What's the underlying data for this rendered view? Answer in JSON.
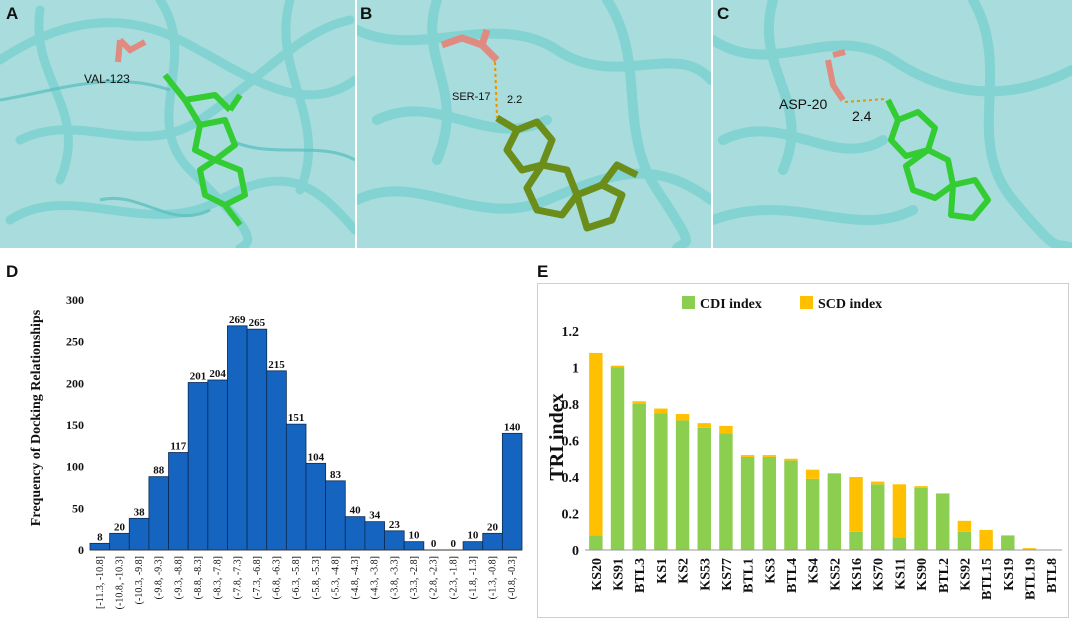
{
  "panels": {
    "A": {
      "letter": "A",
      "residue_label": "VAL-123"
    },
    "B": {
      "letter": "B",
      "residue_label": "SER-17",
      "distance_label": "2.2"
    },
    "C": {
      "letter": "C",
      "residue_label": "ASP-20",
      "distance_label": "2.4"
    },
    "D": {
      "letter": "D"
    },
    "E": {
      "letter": "E"
    }
  },
  "colors": {
    "protein": "#7fd3d3",
    "protein_bg": "#a9dcdc",
    "ligand_bright": "#33cc33",
    "ligand_olive": "#6b8e1a",
    "residue": "#e08a80",
    "bar_blue": "#1565c0",
    "cdi_green": "#8ccf50",
    "scd_orange": "#ffc000"
  },
  "chart_data": [
    {
      "type": "bar",
      "title": "",
      "xlabel": "",
      "ylabel": "Frequency of Docking Relationships",
      "ylim": [
        0,
        300
      ],
      "yticks": [
        "0",
        "50",
        "100",
        "150",
        "200",
        "250",
        "300"
      ],
      "categories": [
        "[-11.3, -10.8]",
        "(-10.8, -10.3]",
        "(-10.3, -9.8]",
        "(-9.8, -9.3]",
        "(-9.3, -8.8]",
        "(-8.8, -8.3]",
        "(-8.3, -7.8]",
        "(-7.8, -7.3]",
        "(-7.3, -6.8]",
        "(-6.8, -6.3]",
        "(-6.3, -5.8]",
        "(-5.8, -5.3]",
        "(-5.3, -4.8]",
        "(-4.8, -4.3]",
        "(-4.3, -3.8]",
        "(-3.8, -3.3]",
        "(-3.3, -2.8]",
        "(-2.8, -2.3]",
        "(-2.3, -1.8]",
        "(-1.8, -1.3]",
        "(-1.3, -0.8]",
        "(-0.8, -0.3]"
      ],
      "values": [
        8,
        20,
        38,
        88,
        117,
        201,
        204,
        269,
        265,
        215,
        151,
        104,
        83,
        40,
        34,
        23,
        10,
        0,
        0,
        10,
        20,
        140
      ],
      "value_labels": [
        "8",
        "20",
        "38",
        "88",
        "117",
        "201",
        "204",
        "269",
        "265",
        "215",
        "151",
        "104",
        "83",
        "40",
        "34",
        "23",
        "10",
        "0",
        "0",
        "10",
        "20",
        "140"
      ]
    },
    {
      "type": "bar",
      "stacked": true,
      "title": "",
      "xlabel": "",
      "ylabel": "TRI index",
      "ylim": [
        0,
        1.2
      ],
      "yticks": [
        "0",
        "0.2",
        "0.4",
        "0.6",
        "0.8",
        "1",
        "1.2"
      ],
      "legend_position": "top",
      "categories": [
        "KS20",
        "KS91",
        "BTL3",
        "KS1",
        "KS2",
        "KS53",
        "KS77",
        "BTL1",
        "KS3",
        "BTL4",
        "KS4",
        "KS52",
        "KS16",
        "KS70",
        "KS11",
        "KS90",
        "BTL2",
        "KS92",
        "BTL15",
        "KS19",
        "BTL19",
        "BTL8"
      ],
      "series": [
        {
          "name": "CDI index",
          "values": [
            0.08,
            1.0,
            0.8,
            0.75,
            0.71,
            0.67,
            0.64,
            0.51,
            0.51,
            0.49,
            0.39,
            0.42,
            0.1,
            0.36,
            0.07,
            0.34,
            0.31,
            0.1,
            0.0,
            0.08,
            0.0,
            0.0
          ]
        },
        {
          "name": "SCD index",
          "values": [
            1.0,
            0.01,
            0.015,
            0.025,
            0.035,
            0.025,
            0.04,
            0.01,
            0.01,
            0.01,
            0.05,
            0.0,
            0.3,
            0.015,
            0.29,
            0.01,
            0.0,
            0.06,
            0.11,
            0.0,
            0.01,
            0.0
          ]
        }
      ]
    }
  ]
}
